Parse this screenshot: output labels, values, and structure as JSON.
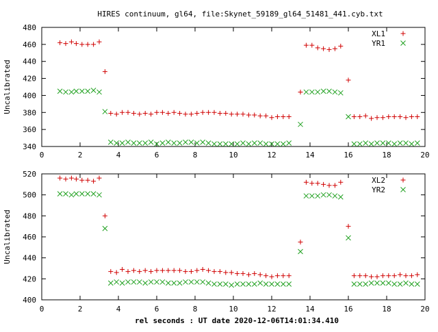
{
  "colors": {
    "series1": "#d00000",
    "series2": "#1fa01f",
    "axis": "#000000",
    "background": "#ffffff"
  },
  "chart_data": [
    {
      "type": "scatter",
      "title": "HIRES continuum, gl64, file:Skynet_59189_gl64_51481_441.cyb.txt",
      "xlabel": "",
      "ylabel": "Uncalibrated",
      "xlim": [
        0,
        20
      ],
      "ylim": [
        340,
        480
      ],
      "xticks": [
        0,
        2,
        4,
        6,
        8,
        10,
        12,
        14,
        16,
        18,
        20
      ],
      "yticks": [
        340,
        360,
        380,
        400,
        420,
        440,
        460,
        480
      ],
      "grid": false,
      "legend": "top-right",
      "series": [
        {
          "name": "XL1",
          "marker": "plus",
          "color": "#d00000",
          "x": [
            0.95,
            1.25,
            1.55,
            1.8,
            2.1,
            2.4,
            2.7,
            3.0,
            3.3,
            3.6,
            3.9,
            4.2,
            4.5,
            4.8,
            5.1,
            5.4,
            5.7,
            6.0,
            6.3,
            6.6,
            6.9,
            7.2,
            7.5,
            7.8,
            8.1,
            8.4,
            8.7,
            9.0,
            9.3,
            9.6,
            9.9,
            10.2,
            10.5,
            10.8,
            11.1,
            11.4,
            11.7,
            12.0,
            12.3,
            12.6,
            12.9,
            13.5,
            13.8,
            14.1,
            14.4,
            14.7,
            15.0,
            15.3,
            15.6,
            16.0,
            16.3,
            16.6,
            16.9,
            17.2,
            17.5,
            17.8,
            18.1,
            18.4,
            18.7,
            19.0,
            19.3,
            19.6
          ],
          "y": [
            462,
            461,
            463,
            461,
            460,
            460,
            460,
            463,
            428,
            379,
            378,
            380,
            380,
            379,
            378,
            379,
            378,
            380,
            380,
            379,
            380,
            379,
            378,
            378,
            379,
            380,
            380,
            380,
            379,
            379,
            378,
            378,
            378,
            377,
            377,
            376,
            376,
            374,
            375,
            375,
            375,
            404,
            459,
            459,
            456,
            455,
            454,
            455,
            458,
            418,
            375,
            375,
            376,
            373,
            374,
            374,
            375,
            375,
            375,
            374,
            375,
            375
          ]
        },
        {
          "name": "YR1",
          "marker": "x",
          "color": "#1fa01f",
          "x": [
            0.95,
            1.25,
            1.55,
            1.8,
            2.1,
            2.4,
            2.7,
            3.0,
            3.3,
            3.6,
            3.9,
            4.2,
            4.5,
            4.8,
            5.1,
            5.4,
            5.7,
            6.0,
            6.3,
            6.6,
            6.9,
            7.2,
            7.5,
            7.8,
            8.1,
            8.4,
            8.7,
            9.0,
            9.3,
            9.6,
            9.9,
            10.2,
            10.5,
            10.8,
            11.1,
            11.4,
            11.7,
            12.0,
            12.3,
            12.6,
            12.9,
            13.5,
            13.8,
            14.1,
            14.4,
            14.7,
            15.0,
            15.3,
            15.6,
            16.0,
            16.3,
            16.6,
            16.9,
            17.2,
            17.5,
            17.8,
            18.1,
            18.4,
            18.7,
            19.0,
            19.3,
            19.6
          ],
          "y": [
            405,
            404,
            404,
            405,
            405,
            405,
            406,
            404,
            381,
            345,
            344,
            344,
            345,
            344,
            344,
            344,
            345,
            343,
            344,
            345,
            344,
            344,
            345,
            345,
            344,
            345,
            344,
            343,
            343,
            343,
            343,
            343,
            344,
            343,
            344,
            344,
            343,
            343,
            343,
            343,
            344,
            366,
            404,
            404,
            404,
            405,
            405,
            404,
            403,
            375,
            343,
            343,
            344,
            343,
            344,
            344,
            344,
            343,
            344,
            344,
            343,
            344
          ]
        }
      ]
    },
    {
      "type": "scatter",
      "title": "",
      "xlabel": "rel seconds : UT date 2020-12-06T14:01:34.410",
      "ylabel": "Uncalibrated",
      "xlim": [
        0,
        20
      ],
      "ylim": [
        400,
        520
      ],
      "xticks": [
        0,
        2,
        4,
        6,
        8,
        10,
        12,
        14,
        16,
        18,
        20
      ],
      "yticks": [
        400,
        420,
        440,
        460,
        480,
        500,
        520
      ],
      "grid": false,
      "legend": "top-right",
      "series": [
        {
          "name": "XL2",
          "marker": "plus",
          "color": "#d00000",
          "x": [
            0.95,
            1.25,
            1.55,
            1.8,
            2.1,
            2.4,
            2.7,
            3.0,
            3.3,
            3.6,
            3.9,
            4.2,
            4.5,
            4.8,
            5.1,
            5.4,
            5.7,
            6.0,
            6.3,
            6.6,
            6.9,
            7.2,
            7.5,
            7.8,
            8.1,
            8.4,
            8.7,
            9.0,
            9.3,
            9.6,
            9.9,
            10.2,
            10.5,
            10.8,
            11.1,
            11.4,
            11.7,
            12.0,
            12.3,
            12.6,
            12.9,
            13.5,
            13.8,
            14.1,
            14.4,
            14.7,
            15.0,
            15.3,
            15.6,
            16.0,
            16.3,
            16.6,
            16.9,
            17.2,
            17.5,
            17.8,
            18.1,
            18.4,
            18.7,
            19.0,
            19.3,
            19.6
          ],
          "y": [
            516,
            515,
            516,
            515,
            514,
            514,
            513,
            516,
            480,
            427,
            426,
            429,
            427,
            428,
            427,
            428,
            427,
            428,
            428,
            428,
            428,
            428,
            427,
            427,
            428,
            429,
            428,
            427,
            427,
            426,
            426,
            425,
            425,
            424,
            425,
            424,
            423,
            422,
            423,
            423,
            423,
            455,
            512,
            511,
            511,
            510,
            509,
            509,
            512,
            470,
            423,
            423,
            423,
            422,
            422,
            423,
            423,
            423,
            424,
            423,
            423,
            424
          ]
        },
        {
          "name": "YR2",
          "marker": "x",
          "color": "#1fa01f",
          "x": [
            0.95,
            1.25,
            1.55,
            1.8,
            2.1,
            2.4,
            2.7,
            3.0,
            3.3,
            3.6,
            3.9,
            4.2,
            4.5,
            4.8,
            5.1,
            5.4,
            5.7,
            6.0,
            6.3,
            6.6,
            6.9,
            7.2,
            7.5,
            7.8,
            8.1,
            8.4,
            8.7,
            9.0,
            9.3,
            9.6,
            9.9,
            10.2,
            10.5,
            10.8,
            11.1,
            11.4,
            11.7,
            12.0,
            12.3,
            12.6,
            12.9,
            13.5,
            13.8,
            14.1,
            14.4,
            14.7,
            15.0,
            15.3,
            15.6,
            16.0,
            16.3,
            16.6,
            16.9,
            17.2,
            17.5,
            17.8,
            18.1,
            18.4,
            18.7,
            19.0,
            19.3,
            19.6
          ],
          "y": [
            501,
            501,
            500,
            501,
            501,
            501,
            501,
            500,
            468,
            416,
            417,
            416,
            417,
            417,
            417,
            416,
            417,
            417,
            417,
            416,
            416,
            416,
            417,
            417,
            417,
            417,
            416,
            415,
            415,
            415,
            414,
            415,
            415,
            415,
            415,
            416,
            415,
            415,
            415,
            415,
            415,
            446,
            499,
            499,
            499,
            500,
            500,
            499,
            498,
            459,
            415,
            415,
            415,
            416,
            416,
            416,
            416,
            415,
            415,
            416,
            415,
            415
          ]
        }
      ]
    }
  ]
}
